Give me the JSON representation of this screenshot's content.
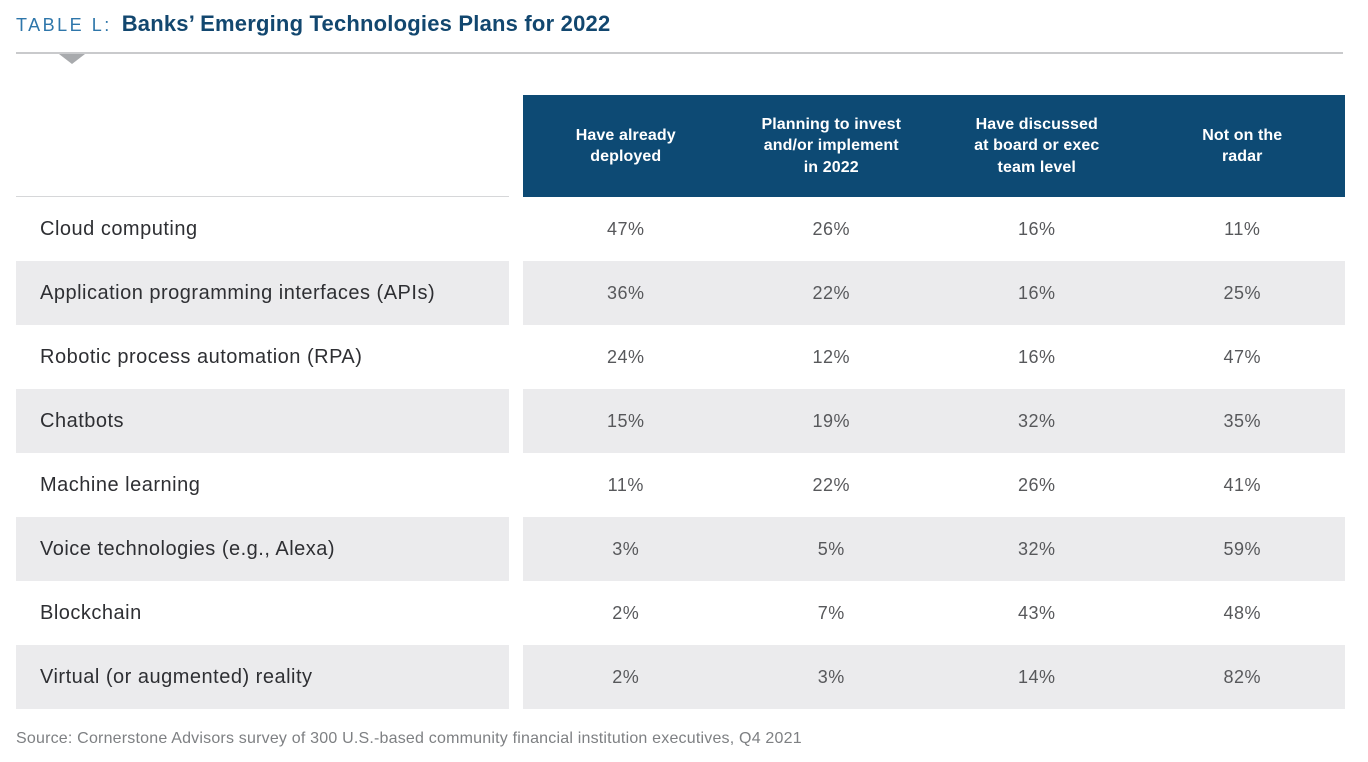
{
  "header": {
    "table_label": "TABLE L:",
    "title": "Banks’ Emerging Technologies Plans for 2022"
  },
  "display_columns": [
    "Have already\ndeployed",
    "Planning to invest\nand/or implement\nin 2022",
    "Have discussed\nat board or exec\nteam level",
    "Not on the\nradar"
  ],
  "chart_data": {
    "type": "table",
    "title": "Banks’ Emerging Technologies Plans for 2022",
    "columns": [
      "Have already deployed",
      "Planning to invest and/or implement in 2022",
      "Have discussed at board or exec team level",
      "Not on the radar"
    ],
    "rows": [
      {
        "label": "Cloud computing",
        "values": [
          "47%",
          "26%",
          "16%",
          "11%"
        ]
      },
      {
        "label": "Application programming interfaces (APIs)",
        "values": [
          "36%",
          "22%",
          "16%",
          "25%"
        ]
      },
      {
        "label": "Robotic process automation (RPA)",
        "values": [
          "24%",
          "12%",
          "16%",
          "47%"
        ]
      },
      {
        "label": "Chatbots",
        "values": [
          "15%",
          "19%",
          "32%",
          "35%"
        ]
      },
      {
        "label": "Machine learning",
        "values": [
          "11%",
          "22%",
          "26%",
          "41%"
        ]
      },
      {
        "label": "Voice technologies (e.g., Alexa)",
        "values": [
          "3%",
          "5%",
          "32%",
          "59%"
        ]
      },
      {
        "label": "Blockchain",
        "values": [
          "2%",
          "7%",
          "43%",
          "48%"
        ]
      },
      {
        "label": "Virtual (or augmented) reality",
        "values": [
          "2%",
          "3%",
          "14%",
          "82%"
        ]
      }
    ],
    "colors": {
      "header_background": "#0d4a74",
      "header_text": "#ffffff",
      "alt_row_background": "#ebebed",
      "row_label_text": "#2e2f33",
      "value_text": "#57585b",
      "title_label_blue": "#2e76aa",
      "title_navy": "#12476f"
    }
  },
  "footer": {
    "source": "Source: Cornerstone Advisors survey of 300 U.S.-based community financial institution executives, Q4 2021"
  }
}
